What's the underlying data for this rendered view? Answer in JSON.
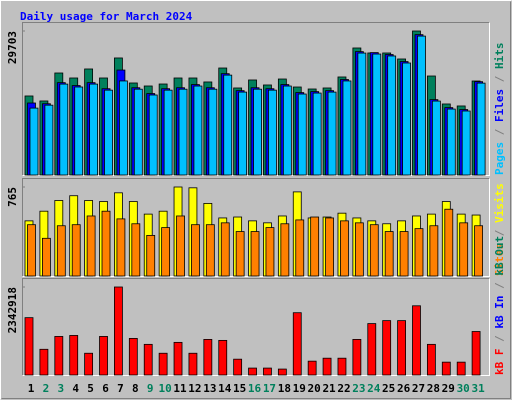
{
  "title": "Daily usage for March 2024",
  "legend_separator": " / ",
  "chart_data": [
    {
      "type": "bar",
      "ylim": [
        0,
        29703
      ],
      "yticks": [
        29703
      ],
      "series": [
        {
          "name": "Pages",
          "color": "#00c0ff",
          "values": [
            13800,
            14400,
            18750,
            18150,
            18750,
            17500,
            19400,
            17700,
            16500,
            17500,
            17700,
            18350,
            17700,
            20600,
            17100,
            17700,
            17500,
            18350,
            16700,
            16900,
            17100,
            19400,
            25150,
            24950,
            24550,
            23100,
            28650,
            15250,
            13600,
            13200,
            18950
          ]
        },
        {
          "name": "Files",
          "color": "#0000ff",
          "values": [
            14850,
            14700,
            19050,
            18450,
            19050,
            17800,
            21650,
            18000,
            16800,
            17800,
            18000,
            18650,
            18000,
            20900,
            17400,
            18000,
            17800,
            18650,
            17000,
            17200,
            17400,
            19700,
            25450,
            25250,
            24850,
            23400,
            28950,
            15550,
            13900,
            13500,
            19250
          ]
        },
        {
          "name": "Hits",
          "color": "#00805c",
          "values": [
            16300,
            15270,
            21040,
            20010,
            21870,
            20010,
            24140,
            18980,
            18360,
            18770,
            20010,
            20010,
            19190,
            22070,
            17950,
            19600,
            18570,
            19800,
            18150,
            17740,
            17950,
            20220,
            26200,
            25170,
            25170,
            23930,
            29703,
            20420,
            14650,
            14240,
            19390
          ]
        }
      ]
    },
    {
      "type": "bar",
      "ylim": [
        0,
        765
      ],
      "yticks": [
        765
      ],
      "series": [
        {
          "name": "Sites",
          "color": "#ff8000",
          "values": [
            441,
            324,
            432,
            441,
            516,
            557,
            491,
            449,
            349,
            416,
            516,
            441,
            441,
            457,
            382,
            382,
            416,
            449,
            482,
            507,
            499,
            474,
            457,
            441,
            382,
            382,
            407,
            432,
            574,
            457,
            432
          ]
        },
        {
          "name": "Visits",
          "color": "#ffff00",
          "values": [
            474,
            557,
            649,
            690,
            649,
            640,
            715,
            640,
            532,
            557,
            765,
            758,
            624,
            499,
            507,
            474,
            457,
            516,
            723,
            499,
            507,
            540,
            499,
            474,
            449,
            474,
            516,
            532,
            640,
            532,
            524
          ]
        }
      ]
    },
    {
      "type": "bar",
      "ylim": [
        0,
        2342918
      ],
      "yticks": [
        2342918
      ],
      "categories": [
        "1",
        "2",
        "3",
        "4",
        "5",
        "6",
        "7",
        "8",
        "9",
        "10",
        "11",
        "12",
        "13",
        "14",
        "15",
        "16",
        "17",
        "18",
        "19",
        "20",
        "21",
        "22",
        "23",
        "24",
        "25",
        "26",
        "27",
        "28",
        "29",
        "30",
        "31"
      ],
      "label_colors": [
        "#000000",
        "#00805c",
        "#00805c",
        "#000000",
        "#000000",
        "#000000",
        "#000000",
        "#000000",
        "#00805c",
        "#00805c",
        "#000000",
        "#000000",
        "#000000",
        "#000000",
        "#000000",
        "#00805c",
        "#00805c",
        "#000000",
        "#000000",
        "#000000",
        "#000000",
        "#000000",
        "#00805c",
        "#00805c",
        "#000000",
        "#000000",
        "#000000",
        "#000000",
        "#000000",
        "#00805c",
        "#00805c"
      ],
      "series": [
        {
          "name": "kB F",
          "color": "#ff0000",
          "values": [
            1526850,
            684450,
            1026675,
            1053000,
            579150,
            1026675,
            2342918,
            974025,
            816075,
            579150,
            868725,
            579150,
            947700,
            921375,
            421200,
            184275,
            184275,
            157950,
            1658475,
            368550,
            447525,
            447525,
            947700,
            1368900,
            1447875,
            1447875,
            1842750,
            816075,
            342225,
            342225,
            1158300
          ]
        },
        {
          "name": "kB In",
          "color": "#0000ff"
        },
        {
          "name": "kB Out",
          "color": "#00805c"
        }
      ]
    }
  ]
}
